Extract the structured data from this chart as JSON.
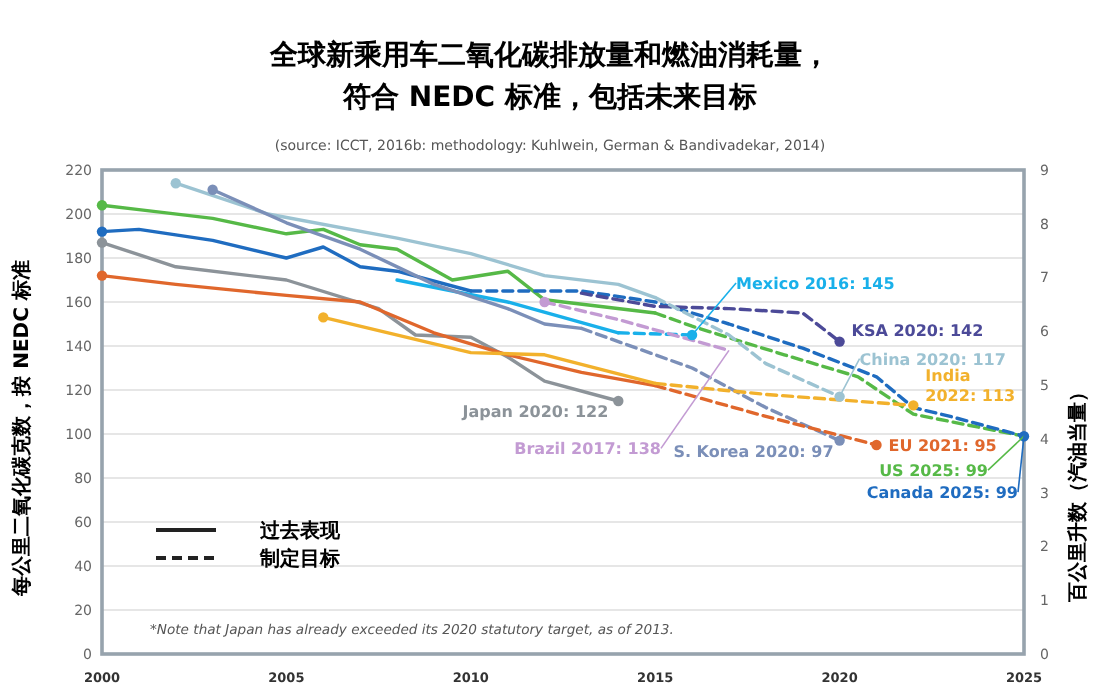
{
  "chart_data": {
    "type": "line",
    "title": "全球新乘用车二氧化碳排放量和燃油消耗量，符合 NEDC 标准，包括未来目标",
    "subtitle": "(source: ICCT, 2016b: methodology: Kuhlwein, German & Bandivadekar, 2014)",
    "ylabel": "每公里二氧化碳克数，按 NEDC 标准",
    "y2label": "百公里升数（汽油当量）",
    "xlim": [
      2000,
      2025
    ],
    "xticks": [
      2000,
      2005,
      2010,
      2015,
      2020,
      2025
    ],
    "ylim": [
      0,
      220
    ],
    "yticks": [
      0,
      20,
      40,
      60,
      80,
      100,
      120,
      140,
      160,
      180,
      200,
      220
    ],
    "y2lim": [
      0,
      9
    ],
    "y2ticks": [
      0,
      1,
      2,
      3,
      4,
      5,
      6,
      7,
      8,
      9
    ],
    "grid": "y",
    "series": [
      {
        "color": "#56b947",
        "line_style": "solid",
        "x": [
          2000,
          2001,
          2003,
          2005,
          2006,
          2007,
          2008,
          2009.5,
          2011,
          2012,
          2015
        ],
        "values": [
          204,
          202,
          198,
          191,
          193,
          186,
          184,
          170,
          174,
          161,
          155
        ]
      },
      {
        "color": "#56b947",
        "line_style": "dashed",
        "x": [
          2015,
          2016,
          2018.5,
          2020.5,
          2022,
          2025
        ],
        "values": [
          155,
          149,
          136,
          126,
          109,
          99
        ]
      },
      {
        "color": "#1f6cc0",
        "line_style": "solid",
        "x": [
          2000,
          2001,
          2003,
          2005,
          2006,
          2007,
          2008,
          2010
        ],
        "values": [
          192,
          193,
          188,
          180,
          185,
          176,
          174,
          165
        ]
      },
      {
        "color": "#1f6cc0",
        "line_style": "dashed",
        "x": [
          2010,
          2013,
          2015,
          2017,
          2019,
          2021,
          2022,
          2023,
          2025
        ],
        "values": [
          165,
          165,
          160,
          150,
          139,
          126,
          112,
          108,
          99
        ]
      },
      {
        "color": "#19b0ea",
        "line_style": "solid",
        "x": [
          2008,
          2011,
          2014
        ],
        "values": [
          170,
          160,
          146
        ]
      },
      {
        "color": "#19b0ea",
        "line_style": "dashed",
        "x": [
          2014,
          2016
        ],
        "values": [
          146,
          145
        ]
      },
      {
        "color": "#4c4a98",
        "line_style": "dashed",
        "x": [
          2013,
          2015,
          2017,
          2019,
          2020
        ],
        "values": [
          164,
          158,
          157,
          155,
          142
        ]
      },
      {
        "color": "#9cc3d2",
        "line_style": "solid",
        "x": [
          2002,
          2004.5,
          2008,
          2010,
          2012,
          2014,
          2015
        ],
        "values": [
          214,
          200,
          189,
          182,
          172,
          168,
          162
        ]
      },
      {
        "color": "#9cc3d2",
        "line_style": "dashed",
        "x": [
          2015,
          2017,
          2018,
          2020
        ],
        "values": [
          162,
          145,
          132,
          117
        ]
      },
      {
        "color": "#7b8fb8",
        "line_style": "solid",
        "x": [
          2003,
          2005,
          2007,
          2009,
          2011,
          2012,
          2013
        ],
        "values": [
          211,
          196,
          184,
          168,
          157,
          150,
          148
        ]
      },
      {
        "color": "#7b8fb8",
        "line_style": "dashed",
        "x": [
          2013,
          2016,
          2018,
          2020
        ],
        "values": [
          148,
          130,
          112,
          97
        ]
      },
      {
        "color": "#8c9399",
        "line_style": "solid",
        "x": [
          2000,
          2002,
          2005,
          2007.5,
          2008.5,
          2010,
          2011,
          2012,
          2014
        ],
        "values": [
          187,
          176,
          170,
          157,
          145,
          144,
          135,
          124,
          115
        ]
      },
      {
        "color": "#e0672c",
        "line_style": "solid",
        "x": [
          2000,
          2002,
          2005,
          2007,
          2009,
          2011,
          2013,
          2015
        ],
        "values": [
          172,
          168,
          163,
          160,
          146,
          136,
          128,
          122
        ]
      },
      {
        "color": "#e0672c",
        "line_style": "dashed",
        "x": [
          2015,
          2018,
          2021
        ],
        "values": [
          122,
          108,
          95
        ]
      },
      {
        "color": "#f2b12c",
        "line_style": "solid",
        "x": [
          2006,
          2010,
          2012,
          2015
        ],
        "values": [
          153,
          137,
          136,
          123
        ]
      },
      {
        "color": "#f2b12c",
        "line_style": "dashed",
        "x": [
          2015,
          2018,
          2022
        ],
        "values": [
          123,
          118,
          113
        ]
      },
      {
        "color": "#c39bd3",
        "line_style": "dashed",
        "x": [
          2012,
          2014,
          2017
        ],
        "values": [
          160,
          152,
          138
        ]
      },
      {
        "type": "scatter",
        "marker": "circle",
        "x": [
          2000,
          2000,
          2000,
          2000,
          2002,
          2003,
          2006,
          2012,
          2016,
          2020,
          2020,
          2022,
          2020,
          2021,
          2014,
          2025
        ],
        "values": [
          204,
          192,
          187,
          172,
          214,
          211,
          153,
          160,
          145,
          142,
          117,
          113,
          97,
          95,
          115,
          99
        ],
        "colors": [
          "#56b947",
          "#1f6cc0",
          "#8c9399",
          "#e0672c",
          "#9cc3d2",
          "#7b8fb8",
          "#f2b12c",
          "#c39bd3",
          "#19b0ea",
          "#4c4a98",
          "#9cc3d2",
          "#f2b12c",
          "#7b8fb8",
          "#e0672c",
          "#8c9399",
          "#1f6cc0"
        ]
      }
    ],
    "annotations": [
      {
        "text": "Mexico 2016: 145",
        "x": 2016,
        "y": 145
      },
      {
        "text": "KSA 2020: 142",
        "x": 2020,
        "y": 142
      },
      {
        "text": "China 2020: 117",
        "x": 2020,
        "y": 117
      },
      {
        "text": "India\n2022: 113",
        "x": 2022,
        "y": 113
      },
      {
        "text": "Japan 2020: 122",
        "x": 2014,
        "y": 115
      },
      {
        "text": "Brazil 2017: 138",
        "x": 2017,
        "y": 138
      },
      {
        "text": "S. Korea 2020: 97",
        "x": 2020,
        "y": 97
      },
      {
        "text": "EU 2021: 95",
        "x": 2021,
        "y": 95
      },
      {
        "text": "US 2025: 99",
        "x": 2025,
        "y": 99
      },
      {
        "text": "Canada 2025: 99",
        "x": 2025,
        "y": 99
      },
      "过去表现",
      "制定目标",
      "*Note that Japan has already exceeded its 2020 statutory target, as of 2013."
    ]
  }
}
